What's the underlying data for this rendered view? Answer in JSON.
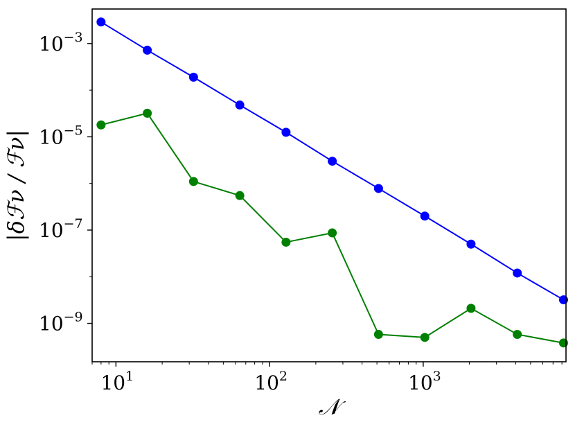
{
  "chart_data": {
    "type": "line",
    "xscale": "log",
    "yscale": "log",
    "xlabel": "𝒩",
    "ylabel": "|δℱν / ℱν|",
    "xlim": [
      7,
      8500
    ],
    "ylim": [
      1.5e-10,
      0.0055
    ],
    "grid": false,
    "x_ticks": [
      {
        "value": 10,
        "base": "10",
        "exp": "1"
      },
      {
        "value": 100,
        "base": "10",
        "exp": "2"
      },
      {
        "value": 1000,
        "base": "10",
        "exp": "3"
      }
    ],
    "y_ticks": [
      {
        "value": 0.001,
        "base": "10",
        "exp": "−3"
      },
      {
        "value": 1e-05,
        "base": "10",
        "exp": "−5"
      },
      {
        "value": 1e-07,
        "base": "10",
        "exp": "−7"
      },
      {
        "value": 1e-09,
        "base": "10",
        "exp": "−9"
      }
    ],
    "series": [
      {
        "color": "#0000ff",
        "x": [
          8,
          16,
          32,
          64,
          128,
          256,
          512,
          1024,
          2048,
          4096,
          8192
        ],
        "y": [
          0.0029,
          0.00072,
          0.00019,
          4.8e-05,
          1.25e-05,
          3e-06,
          7.8e-07,
          2e-07,
          5e-08,
          1.2e-08,
          3.2e-09
        ]
      },
      {
        "color": "#008000",
        "x": [
          8,
          16,
          32,
          64,
          128,
          256,
          512,
          1024,
          2048,
          4096,
          8192
        ],
        "y": [
          1.8e-05,
          3.2e-05,
          1.1e-06,
          5.5e-07,
          5.5e-08,
          8.7e-08,
          5.8e-10,
          5e-10,
          2.1e-09,
          5.8e-10,
          3.8e-10
        ]
      }
    ]
  }
}
